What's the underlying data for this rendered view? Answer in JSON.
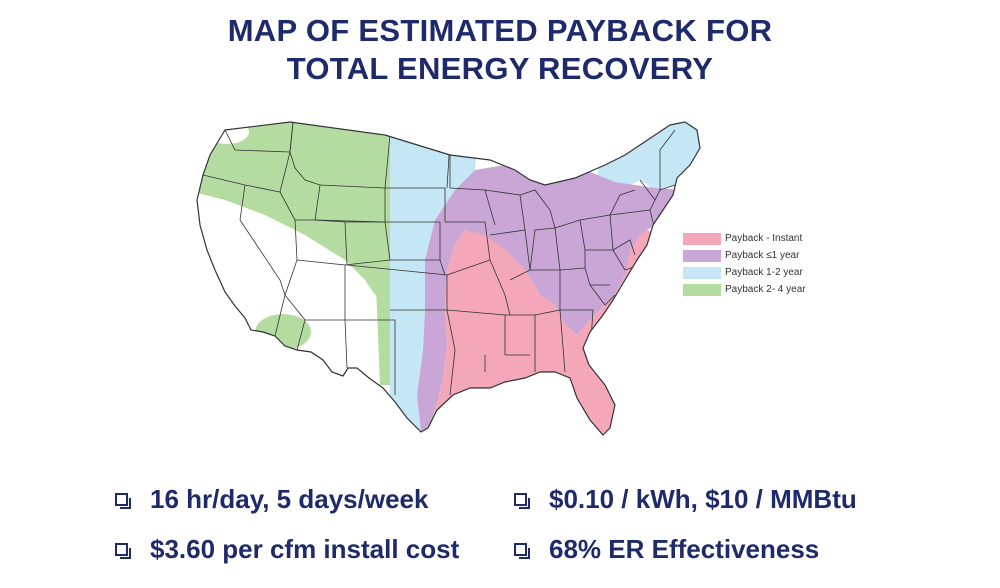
{
  "title": {
    "line1": "MAP OF ESTIMATED PAYBACK FOR",
    "line2": "TOTAL ENERGY RECOVERY"
  },
  "legend": [
    {
      "label": "Payback - Instant",
      "color": "#f4a7b9"
    },
    {
      "label": "Payback ≤1 year",
      "color": "#c9a6d6"
    },
    {
      "label": "Payback 1-2 year",
      "color": "#c5e6f5"
    },
    {
      "label": "Payback 2- 4 year",
      "color": "#b5dca0"
    }
  ],
  "bullets": [
    {
      "text": "16 hr/day, 5 days/week",
      "icon": "checkbox-icon"
    },
    {
      "text": "$0.10 / kWh, $10 / MMBtu",
      "icon": "checkbox-icon"
    },
    {
      "text": "$3.60 per cfm install cost",
      "icon": "checkbox-icon"
    },
    {
      "text": "68% ER Effectiveness",
      "icon": "checkbox-icon"
    }
  ],
  "colors": {
    "title": "#1f2a6b",
    "instant": "#f4a7b9",
    "one_year": "#c9a6d6",
    "one_two_year": "#c5e6f5",
    "two_four_year": "#b5dca0",
    "border": "#333333"
  }
}
